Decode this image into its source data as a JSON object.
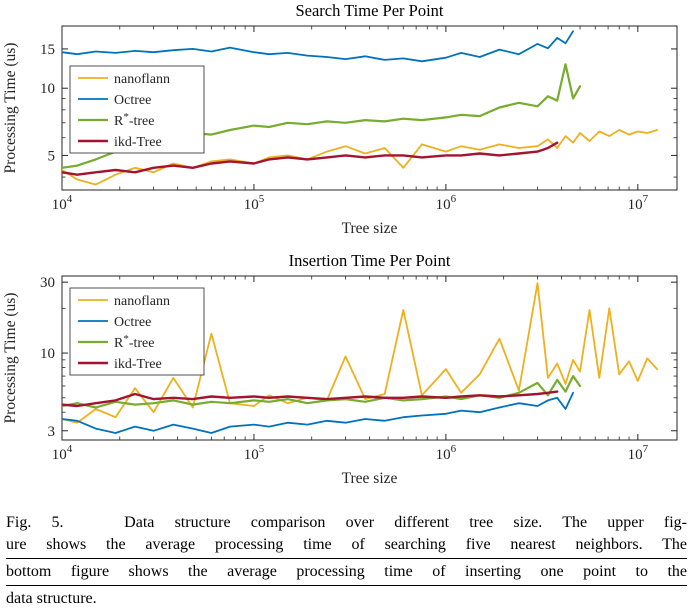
{
  "caption": {
    "lines": [
      "Fig. 5.   Data structure comparison over different tree size. The upper fig-",
      "ure shows the average processing time of searching five nearest neighbors. The",
      "bottom figure shows the average processing time of inserting one point to the",
      "data structure."
    ]
  },
  "chart_data": [
    {
      "type": "line",
      "title": "Search Time Per Point",
      "xlabel": "Tree size",
      "ylabel": "Processing Time (us)",
      "xscale": "log",
      "yscale": "log",
      "xlim": [
        10000,
        16000000
      ],
      "ylim": [
        3.5,
        19
      ],
      "xticks": [
        10000,
        100000,
        1000000,
        10000000
      ],
      "yticks": [
        5,
        10,
        15
      ],
      "grid": false,
      "legend_position": "northwest",
      "legend_offset": [
        8,
        40
      ],
      "series": [
        {
          "name": "nanoflann",
          "color": "#EDB120",
          "width": 1.8,
          "x": [
            10000,
            12000,
            15000,
            19000,
            24000,
            30000,
            38000,
            48000,
            60000,
            75000,
            100000,
            120000,
            150000,
            190000,
            240000,
            300000,
            380000,
            480000,
            600000,
            750000,
            1000000,
            1200000,
            1500000,
            1900000,
            2400000,
            3000000,
            3400000,
            3800000,
            4200000,
            4600000,
            5000000,
            5600000,
            6300000,
            7100000,
            8000000,
            9000000,
            10000000,
            11200000,
            12600000
          ],
          "y": [
            4.3,
            3.9,
            3.7,
            4.1,
            4.4,
            4.2,
            4.6,
            4.4,
            4.7,
            4.8,
            4.6,
            4.9,
            5.0,
            4.8,
            5.2,
            5.5,
            5.1,
            5.4,
            4.4,
            5.6,
            5.2,
            5.5,
            5.3,
            5.6,
            5.4,
            5.5,
            5.9,
            5.4,
            6.1,
            5.7,
            6.3,
            5.8,
            6.4,
            6.1,
            6.5,
            6.2,
            6.4,
            6.3,
            6.5
          ]
        },
        {
          "name": "Octree",
          "color": "#0072BD",
          "width": 1.8,
          "x": [
            10000,
            12000,
            15000,
            19000,
            24000,
            30000,
            38000,
            48000,
            60000,
            75000,
            100000,
            120000,
            150000,
            190000,
            240000,
            300000,
            380000,
            480000,
            600000,
            750000,
            1000000,
            1200000,
            1500000,
            1900000,
            2400000,
            3000000,
            3400000,
            3800000,
            4200000,
            4600000
          ],
          "y": [
            14.5,
            14.2,
            14.6,
            14.4,
            14.7,
            14.5,
            14.8,
            15.0,
            14.6,
            15.2,
            14.5,
            14.2,
            14.4,
            14.0,
            13.8,
            13.5,
            13.9,
            13.4,
            13.6,
            13.2,
            13.7,
            14.4,
            13.8,
            14.9,
            14.2,
            15.8,
            15.1,
            16.8,
            15.9,
            18.0
          ]
        },
        {
          "name": "R*-tree",
          "color": "#77AC30",
          "width": 2.2,
          "x": [
            10000,
            12000,
            15000,
            19000,
            24000,
            30000,
            38000,
            48000,
            60000,
            75000,
            100000,
            120000,
            150000,
            190000,
            240000,
            300000,
            380000,
            480000,
            600000,
            750000,
            1000000,
            1200000,
            1500000,
            1900000,
            2400000,
            3000000,
            3400000,
            3800000,
            4200000,
            4600000,
            5000000
          ],
          "y": [
            4.4,
            4.5,
            4.8,
            5.2,
            5.5,
            5.9,
            6.1,
            6.3,
            6.2,
            6.5,
            6.8,
            6.7,
            7.0,
            6.9,
            7.1,
            7.0,
            7.2,
            7.1,
            7.3,
            7.2,
            7.4,
            7.6,
            7.5,
            8.2,
            8.6,
            8.3,
            9.2,
            8.8,
            12.8,
            9.0,
            10.2
          ]
        },
        {
          "name": "ikd-Tree",
          "color": "#A2142F",
          "width": 2.4,
          "x": [
            10000,
            12000,
            15000,
            19000,
            24000,
            30000,
            38000,
            48000,
            60000,
            75000,
            100000,
            120000,
            150000,
            190000,
            240000,
            300000,
            380000,
            480000,
            600000,
            750000,
            1000000,
            1200000,
            1500000,
            1900000,
            2400000,
            3000000,
            3400000,
            3800000
          ],
          "y": [
            4.2,
            4.1,
            4.2,
            4.3,
            4.2,
            4.4,
            4.5,
            4.4,
            4.6,
            4.7,
            4.6,
            4.8,
            4.9,
            4.8,
            4.9,
            5.0,
            4.9,
            5.0,
            5.0,
            4.9,
            5.0,
            5.0,
            5.1,
            5.0,
            5.1,
            5.2,
            5.4,
            5.7
          ]
        }
      ]
    },
    {
      "type": "line",
      "title": "Insertion Time Per Point",
      "xlabel": "Tree size",
      "ylabel": "Processing Time (us)",
      "xscale": "log",
      "yscale": "log",
      "xlim": [
        10000,
        16000000
      ],
      "ylim": [
        2.6,
        33
      ],
      "xticks": [
        10000,
        100000,
        1000000,
        10000000
      ],
      "yticks": [
        3,
        10,
        30
      ],
      "grid": false,
      "legend_position": "northwest",
      "legend_offset": [
        8,
        12
      ],
      "series": [
        {
          "name": "nanoflann",
          "color": "#EDB120",
          "width": 1.8,
          "x": [
            10000,
            12000,
            15000,
            19000,
            24000,
            30000,
            38000,
            48000,
            60000,
            75000,
            100000,
            120000,
            150000,
            190000,
            240000,
            300000,
            380000,
            480000,
            600000,
            750000,
            1000000,
            1200000,
            1500000,
            1900000,
            2400000,
            3000000,
            3400000,
            3800000,
            4200000,
            4600000,
            5000000,
            5600000,
            6300000,
            7100000,
            8000000,
            9000000,
            10000000,
            11200000,
            12600000
          ],
          "y": [
            3.6,
            3.4,
            4.2,
            3.7,
            5.8,
            4.0,
            6.8,
            4.3,
            13.5,
            4.6,
            4.4,
            5.2,
            4.6,
            5.0,
            4.8,
            9.5,
            4.9,
            5.3,
            19.5,
            5.2,
            7.8,
            5.4,
            7.2,
            12.5,
            5.6,
            29.5,
            6.8,
            8.5,
            6.2,
            9.0,
            7.5,
            19.5,
            6.8,
            20.0,
            7.2,
            8.8,
            6.5,
            9.2,
            7.8
          ]
        },
        {
          "name": "Octree",
          "color": "#0072BD",
          "width": 1.8,
          "x": [
            10000,
            12000,
            15000,
            19000,
            24000,
            30000,
            38000,
            48000,
            60000,
            75000,
            100000,
            120000,
            150000,
            190000,
            240000,
            300000,
            380000,
            480000,
            600000,
            750000,
            1000000,
            1200000,
            1500000,
            1900000,
            2400000,
            3000000,
            3400000,
            3800000,
            4200000,
            4600000
          ],
          "y": [
            3.6,
            3.5,
            3.1,
            2.9,
            3.2,
            3.0,
            3.3,
            3.1,
            2.9,
            3.2,
            3.3,
            3.2,
            3.4,
            3.3,
            3.5,
            3.4,
            3.6,
            3.5,
            3.7,
            3.8,
            3.9,
            4.1,
            4.0,
            4.3,
            4.6,
            4.4,
            4.8,
            5.0,
            4.2,
            5.4
          ]
        },
        {
          "name": "R*-tree",
          "color": "#77AC30",
          "width": 2.2,
          "x": [
            10000,
            12000,
            15000,
            19000,
            24000,
            30000,
            38000,
            48000,
            60000,
            75000,
            100000,
            120000,
            150000,
            190000,
            240000,
            300000,
            380000,
            480000,
            600000,
            750000,
            1000000,
            1200000,
            1500000,
            1900000,
            2400000,
            3000000,
            3400000,
            3800000,
            4200000,
            4600000,
            5000000
          ],
          "y": [
            4.4,
            4.6,
            4.3,
            4.7,
            4.5,
            4.6,
            4.8,
            4.5,
            4.7,
            4.6,
            4.8,
            4.7,
            4.9,
            4.6,
            4.8,
            4.9,
            4.7,
            5.0,
            4.8,
            4.9,
            5.1,
            4.9,
            5.2,
            5.0,
            5.4,
            6.3,
            5.2,
            6.6,
            5.5,
            7.0,
            6.0
          ]
        },
        {
          "name": "ikd-Tree",
          "color": "#A2142F",
          "width": 2.4,
          "x": [
            10000,
            12000,
            15000,
            19000,
            24000,
            30000,
            38000,
            48000,
            60000,
            75000,
            100000,
            120000,
            150000,
            190000,
            240000,
            300000,
            380000,
            480000,
            600000,
            750000,
            1000000,
            1200000,
            1500000,
            1900000,
            2400000,
            3000000,
            3400000,
            3800000
          ],
          "y": [
            4.5,
            4.4,
            4.6,
            4.8,
            5.3,
            4.9,
            5.0,
            4.9,
            5.1,
            5.0,
            5.1,
            5.0,
            5.1,
            5.0,
            4.9,
            5.0,
            5.1,
            5.0,
            5.0,
            5.1,
            5.0,
            5.1,
            5.2,
            5.1,
            5.2,
            5.3,
            5.4,
            5.5
          ]
        }
      ]
    }
  ]
}
